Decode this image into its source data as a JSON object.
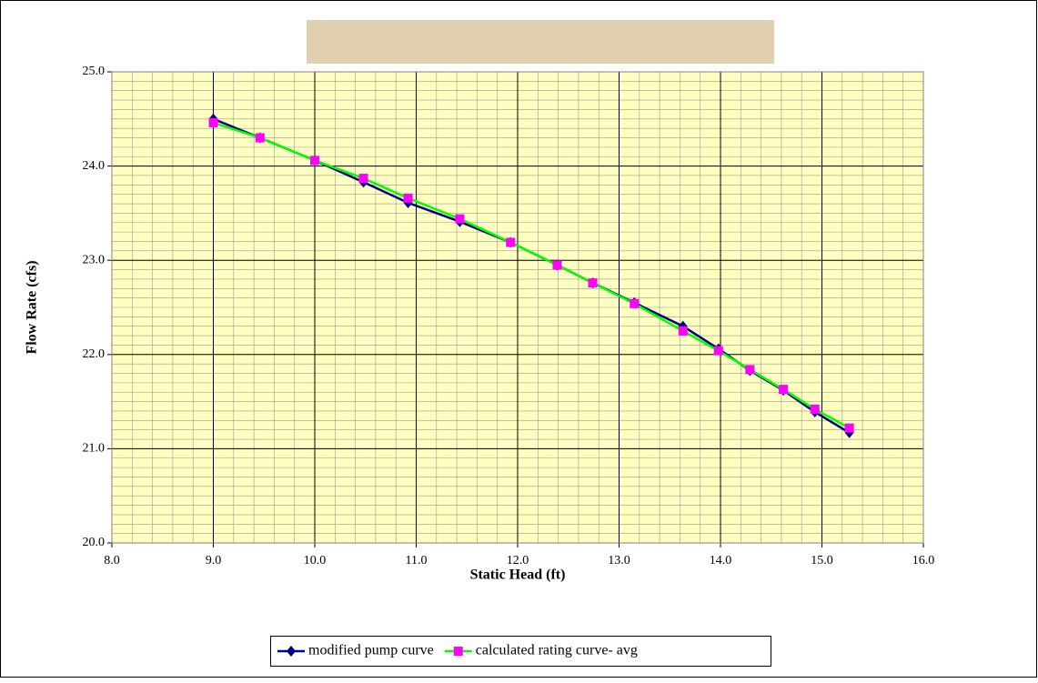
{
  "chart_data": {
    "type": "line",
    "x_label": "Static Head (ft)",
    "y_label": "Flow Rate (cfs)",
    "x": [
      9.0,
      9.46,
      10.0,
      10.48,
      10.92,
      11.43,
      11.93,
      12.39,
      12.74,
      13.15,
      13.63,
      13.98,
      14.29,
      14.62,
      14.93,
      15.27
    ],
    "series": [
      {
        "name": "modified pump curve",
        "color": "#000080",
        "marker": "diamond",
        "values": [
          24.5,
          24.3,
          24.06,
          23.83,
          23.61,
          23.41,
          23.19,
          22.95,
          22.76,
          22.55,
          22.3,
          22.06,
          21.83,
          21.62,
          21.39,
          21.17
        ]
      },
      {
        "name": "calculated rating curve- avg",
        "color": "#00ff00",
        "marker_color": "#ff00ff",
        "marker": "square",
        "values": [
          24.46,
          24.3,
          24.06,
          23.87,
          23.66,
          23.44,
          23.19,
          22.95,
          22.76,
          22.54,
          22.25,
          22.04,
          21.84,
          21.63,
          21.42,
          21.22
        ]
      }
    ],
    "xlim": [
      8.0,
      16.0
    ],
    "xticks": [
      {
        "value": 8,
        "label": "8.0"
      },
      {
        "value": 9,
        "label": "9.0"
      },
      {
        "value": 10,
        "label": "10.0"
      },
      {
        "value": 11,
        "label": "11.0"
      },
      {
        "value": 12,
        "label": "12.0"
      },
      {
        "value": 13,
        "label": "13.0"
      },
      {
        "value": 14,
        "label": "14.0"
      },
      {
        "value": 15,
        "label": "15.0"
      },
      {
        "value": 16,
        "label": "16.0"
      }
    ],
    "ylim": [
      20.0,
      25.0
    ],
    "yticks": [
      {
        "value": 20,
        "label": "20.0"
      },
      {
        "value": 21,
        "label": "21.0"
      },
      {
        "value": 22,
        "label": "22.0"
      },
      {
        "value": 23,
        "label": "23.0"
      },
      {
        "value": 24,
        "label": "24.0"
      },
      {
        "value": 25,
        "label": "25.0"
      }
    ],
    "grid": true,
    "plot_background": "#ffffc0",
    "legend": "bottom"
  }
}
